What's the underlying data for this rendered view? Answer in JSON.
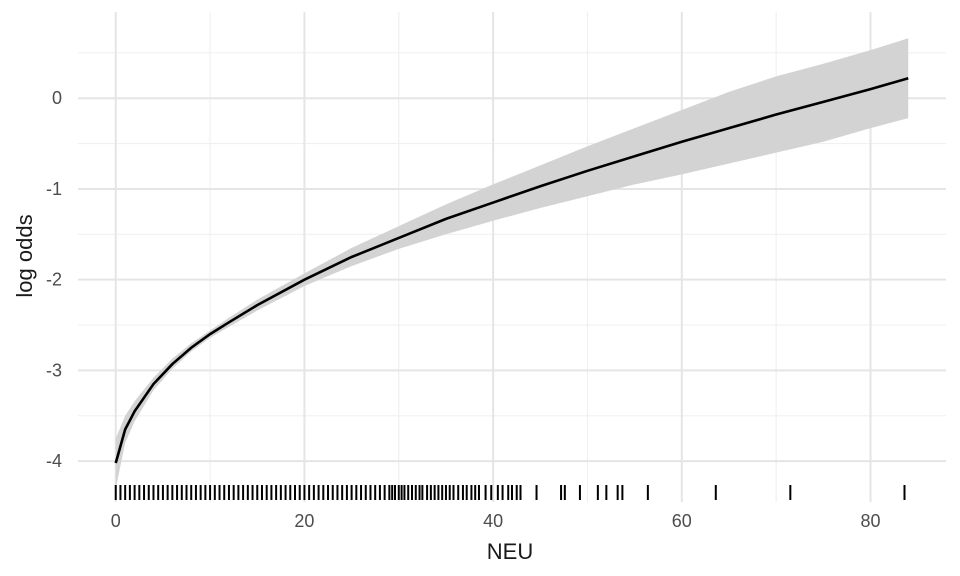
{
  "chart_data": {
    "type": "line",
    "title": "",
    "xlabel": "NEU",
    "ylabel": "log odds",
    "xlim": [
      -4,
      88
    ],
    "ylim": [
      -4.45,
      0.95
    ],
    "x_ticks": [
      0,
      20,
      40,
      60,
      80
    ],
    "x_tick_labels": [
      "0",
      "20",
      "40",
      "60",
      "80"
    ],
    "x_minor_ticks": [
      10,
      30,
      50,
      70
    ],
    "y_ticks": [
      -4,
      -3,
      -2,
      -1,
      0
    ],
    "y_tick_labels": [
      "-4",
      "-3",
      "-2",
      "-1",
      "0"
    ],
    "y_minor_ticks": [
      -3.5,
      -2.5,
      -1.5,
      -0.5,
      0.5
    ],
    "grid": true,
    "legend": "none",
    "series": [
      {
        "type": "line",
        "x": [
          0,
          1,
          2,
          4,
          6,
          8,
          10,
          12,
          15,
          20,
          25,
          30,
          35,
          40,
          45,
          50,
          55,
          60,
          65,
          70,
          75,
          80,
          84
        ],
        "y": [
          -4.02,
          -3.65,
          -3.45,
          -3.15,
          -2.93,
          -2.75,
          -2.6,
          -2.47,
          -2.28,
          -2.0,
          -1.75,
          -1.54,
          -1.33,
          -1.15,
          -0.97,
          -0.8,
          -0.64,
          -0.48,
          -0.33,
          -0.18,
          -0.04,
          0.1,
          0.22
        ]
      },
      {
        "type": "ribbon",
        "x": [
          0,
          1,
          2,
          4,
          6,
          8,
          10,
          12,
          15,
          20,
          25,
          30,
          35,
          40,
          45,
          50,
          55,
          60,
          65,
          70,
          75,
          80,
          84
        ],
        "lower": [
          -4.3,
          -3.8,
          -3.56,
          -3.22,
          -2.98,
          -2.79,
          -2.64,
          -2.52,
          -2.34,
          -2.07,
          -1.85,
          -1.66,
          -1.5,
          -1.35,
          -1.21,
          -1.08,
          -0.95,
          -0.84,
          -0.72,
          -0.6,
          -0.48,
          -0.33,
          -0.22
        ],
        "upper": [
          -3.75,
          -3.5,
          -3.34,
          -3.08,
          -2.87,
          -2.7,
          -2.56,
          -2.42,
          -2.22,
          -1.93,
          -1.65,
          -1.41,
          -1.17,
          -0.95,
          -0.74,
          -0.53,
          -0.33,
          -0.13,
          0.07,
          0.24,
          0.38,
          0.53,
          0.66
        ]
      }
    ],
    "rug_x": [
      0,
      0.5,
      1,
      1.5,
      2,
      2.5,
      3,
      3.5,
      4,
      4.5,
      5,
      5.5,
      6,
      6.5,
      7,
      7.5,
      8,
      8.5,
      9,
      9.5,
      10,
      10.5,
      11,
      11.5,
      12,
      12.5,
      13,
      13.5,
      14,
      14.5,
      15,
      15.5,
      16,
      16.5,
      17,
      17.5,
      18,
      18.5,
      19,
      19.5,
      20,
      20.5,
      21,
      21.5,
      22,
      22.5,
      23,
      23.5,
      24,
      24.5,
      25,
      25.5,
      26,
      26.5,
      27,
      27.5,
      28,
      28.5,
      29,
      29.3,
      29.6,
      30,
      30.3,
      30.6,
      31,
      31.4,
      31.8,
      32.2,
      32.5,
      33,
      33.4,
      33.8,
      34.2,
      34.6,
      35,
      35.4,
      35.8,
      36.3,
      36.8,
      37.2,
      37.7,
      38.1,
      38.5,
      39.2,
      39.8,
      40.5,
      41,
      41.6,
      42,
      42.5,
      42.9,
      44.6,
      47.2,
      47.6,
      49.2,
      51.1,
      52,
      53.2,
      53.7,
      56.4,
      63.6,
      71.5,
      83.6
    ]
  }
}
